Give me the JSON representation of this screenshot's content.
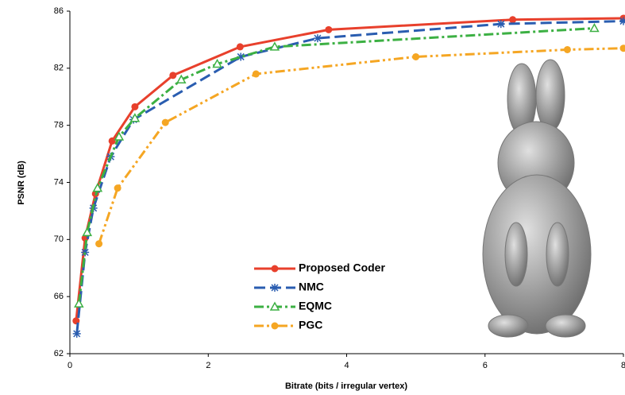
{
  "chart_data": {
    "type": "line",
    "x_label": "Bitrate (bits / irregular vertex)",
    "y_label": "PSNR (dB)",
    "xlim": [
      0,
      8
    ],
    "xticks": [
      0,
      2,
      4,
      6,
      8
    ],
    "ylim": [
      62,
      86
    ],
    "yticks": [
      62,
      66,
      70,
      74,
      78,
      82,
      86
    ],
    "series": [
      {
        "name": "Proposed Coder",
        "color": "#e8402c",
        "marker": "circle",
        "dash": "none",
        "x": [
          0.09,
          0.22,
          0.37,
          0.61,
          0.94,
          1.49,
          2.46,
          3.74,
          6.4,
          8
        ],
        "values": [
          64.3,
          70.1,
          73.2,
          76.9,
          79.3,
          81.5,
          83.5,
          84.7,
          85.4,
          85.5
        ]
      },
      {
        "name": "NMC",
        "color": "#2a5db0",
        "marker": "star",
        "dash": "14 6",
        "x": [
          0.1,
          0.22,
          0.34,
          0.59,
          0.92,
          2.47,
          3.58,
          6.23,
          8
        ],
        "values": [
          63.4,
          69.1,
          72.2,
          75.8,
          78.4,
          82.8,
          84.1,
          85.1,
          85.3
        ]
      },
      {
        "name": "EQMC",
        "color": "#3cb043",
        "marker": "triangle",
        "dash": "12 4 3 4",
        "x": [
          0.13,
          0.25,
          0.4,
          0.71,
          0.94,
          1.61,
          2.13,
          2.96,
          7.58
        ],
        "values": [
          65.5,
          70.5,
          73.6,
          77.2,
          78.5,
          81.2,
          82.3,
          83.5,
          84.8
        ]
      },
      {
        "name": "PGC",
        "color": "#f5a623",
        "marker": "circle",
        "dash": "12 4 3 4 3 4",
        "x": [
          0.42,
          0.69,
          1.38,
          2.69,
          5.0,
          7.19,
          8
        ],
        "values": [
          69.7,
          73.6,
          78.2,
          81.6,
          82.8,
          83.3,
          83.4
        ]
      }
    ]
  }
}
